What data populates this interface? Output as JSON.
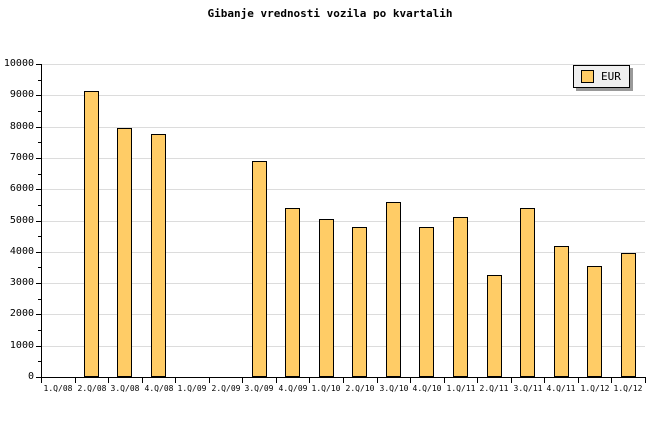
{
  "chart_data": {
    "type": "bar",
    "title": "Gibanje vrednosti vozila po kvartalih",
    "categories": [
      "1.Q/08",
      "2.Q/08",
      "3.Q/08",
      "4.Q/08",
      "1.Q/09",
      "2.Q/09",
      "3.Q/09",
      "4.Q/09",
      "1.Q/10",
      "2.Q/10",
      "3.Q/10",
      "4.Q/10",
      "1.Q/11",
      "2.Q/11",
      "3.Q/11",
      "4.Q/11",
      "1.Q/12",
      "1.Q/12"
    ],
    "series": [
      {
        "name": "EUR",
        "values": [
          null,
          9150,
          7950,
          7750,
          null,
          null,
          6900,
          5400,
          5050,
          4800,
          5600,
          4800,
          5100,
          3250,
          5400,
          4200,
          3550,
          3950
        ]
      }
    ],
    "xlabel": "",
    "ylabel": "",
    "ylim": [
      0,
      10000
    ],
    "ytick_step": 1000,
    "yminor_tick_step": 500,
    "ytick_labels": [
      "0",
      "1000",
      "2000",
      "3000",
      "4000",
      "5000",
      "6000",
      "7000",
      "8000",
      "9000",
      "10000"
    ],
    "grid": true,
    "legend": {
      "label": "EUR",
      "position": "top-right"
    },
    "colors": {
      "bar_fill": "#FFCC66",
      "bar_border": "#000000",
      "gridline": "#DCDCDC",
      "axis": "#000000",
      "background": "#FFFFFF",
      "legend_bg": "#EFEFEF",
      "legend_shadow": "#999999",
      "text": "#000000"
    }
  }
}
